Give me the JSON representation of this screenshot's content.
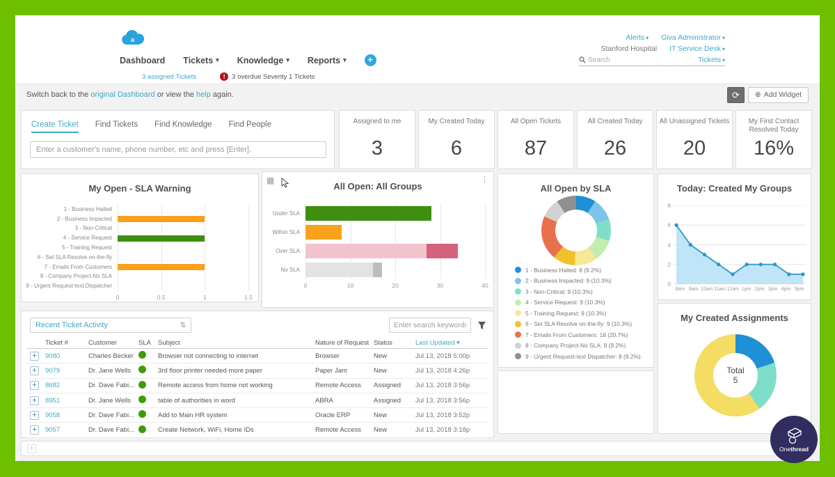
{
  "icons": {
    "caret": "▾",
    "menu_dots": "⋮",
    "grid": "▦",
    "refresh": "⟳",
    "add_widget": "⊕",
    "sort": "⇅",
    "alert": "!",
    "plus": "+"
  },
  "header": {
    "nav": [
      {
        "label": "Dashboard",
        "active": true,
        "caret": false
      },
      {
        "label": "Tickets",
        "active": false,
        "caret": true
      },
      {
        "label": "Knowledge",
        "active": false,
        "caret": true
      },
      {
        "label": "Reports",
        "active": false,
        "caret": true
      }
    ],
    "subnav": {
      "assigned": "3 assigned Tickets",
      "overdue": "3 overdue Severity 1 Tickets"
    },
    "account": {
      "alerts": "Alerts",
      "admin": "Giva Administrator",
      "org": "Stanford Hospital",
      "desk": "IT Service Desk",
      "search_placeholder": "Search",
      "scope": "Tickets"
    }
  },
  "toolbar": {
    "switch_prefix": "Switch back to the",
    "link_dashboard": "original Dashboard",
    "switch_mid": "or view the",
    "link_help": "help",
    "switch_suffix": "again.",
    "add_widget": "Add Widget"
  },
  "quick": {
    "tabs": [
      {
        "label": "Create Ticket",
        "active": true
      },
      {
        "label": "Find Tickets",
        "active": false
      },
      {
        "label": "Find Knowledge",
        "active": false
      },
      {
        "label": "Find People",
        "active": false
      }
    ],
    "placeholder": "Enter a customer's name, phone number, etc and press [Enter]."
  },
  "stats": [
    {
      "label": "Assigned to me",
      "value": "3"
    },
    {
      "label": "My Created Today",
      "value": "6"
    },
    {
      "label": "All Open Tickets",
      "value": "87"
    },
    {
      "label": "All Created Today",
      "value": "26"
    },
    {
      "label": "All Unassigned Tickets",
      "value": "20"
    },
    {
      "label": "My First Contact Resolved Today",
      "value": "16%"
    }
  ],
  "chart_data": [
    {
      "id": "sla_warning",
      "type": "bar",
      "orientation": "horizontal",
      "title": "My Open - SLA Warning",
      "categories": [
        "1 - Business Halted",
        "2 - Business Impacted",
        "3 - Non-Critical",
        "4 - Service Request",
        "5 - Training Request",
        "6 - Set SLA Resolve on-the-fly",
        "7 - Emails From Customers",
        "8 - Company Project-No SLA",
        "9 - Urgent Request-text Dispatcher"
      ],
      "values": [
        0,
        1,
        0,
        1,
        0,
        0,
        1,
        0,
        0
      ],
      "bar_colors": [
        "",
        "#f9a11b",
        "",
        "#3e8f10",
        "",
        "",
        "#f9a11b",
        "",
        ""
      ],
      "xlim": [
        0,
        1.5
      ],
      "xticks": [
        0,
        0.5,
        1,
        1.5
      ],
      "grid": true
    },
    {
      "id": "all_open_groups",
      "type": "bar",
      "orientation": "horizontal",
      "title": "All Open: All Groups",
      "categories": [
        "Under SLA",
        "Within SLA",
        "Over SLA",
        "No SLA"
      ],
      "segments": [
        [
          {
            "value": 28,
            "color": "#3e8f10"
          }
        ],
        [
          {
            "value": 8,
            "color": "#f9a11b"
          }
        ],
        [
          {
            "value": 27,
            "color": "#f2c3cd"
          },
          {
            "value": 7,
            "color": "#d4627d"
          }
        ],
        [
          {
            "value": 15,
            "color": "#e3e3e3"
          },
          {
            "value": 2,
            "color": "#bdbdbd"
          }
        ]
      ],
      "totals": {
        "Under SLA": 28,
        "Within SLA": 8,
        "Over SLA": 34,
        "No SLA": 17
      },
      "xlim": [
        0,
        40
      ],
      "xticks": [
        0,
        10,
        20,
        30,
        40
      ],
      "grid": true
    },
    {
      "id": "open_by_sla",
      "type": "donut",
      "title": "All Open by SLA",
      "slices": [
        {
          "label": "1 - Business Halted",
          "value": 8,
          "pct": "9.2%",
          "color": "#1f8fd6"
        },
        {
          "label": "2 - Business Impacted",
          "value": 9,
          "pct": "10.3%",
          "color": "#7cc4e8"
        },
        {
          "label": "3 - Non-Critical",
          "value": 9,
          "pct": "10.3%",
          "color": "#7fdec9"
        },
        {
          "label": "4 - Service Request",
          "value": 9,
          "pct": "10.3%",
          "color": "#c4ecaf"
        },
        {
          "label": "5 - Training Request",
          "value": 9,
          "pct": "10.3%",
          "color": "#f7e796"
        },
        {
          "label": "6 - Set SLA Resolve on-the-fly",
          "value": 9,
          "pct": "10.3%",
          "color": "#efc12f"
        },
        {
          "label": "7 - Emails From Customers",
          "value": 18,
          "pct": "20.7%",
          "color": "#e8714c"
        },
        {
          "label": "8 - Company Project-No SLA",
          "value": 8,
          "pct": "9.2%",
          "color": "#d2d2d2"
        },
        {
          "label": "9 - Urgent Request-text Dispatcher",
          "value": 8,
          "pct": "9.2%",
          "color": "#8f8f8f"
        }
      ],
      "legend_position": "bottom"
    },
    {
      "id": "today_created_my_groups",
      "type": "area",
      "title": "Today: Created My Groups",
      "x": [
        "8am",
        "9am",
        "10am",
        "11am",
        "12am",
        "1pm",
        "2pm",
        "3pm",
        "4pm",
        "5pm"
      ],
      "values": [
        6,
        4,
        3,
        2,
        1,
        2,
        2,
        2,
        1,
        1
      ],
      "ylim": [
        0,
        8
      ],
      "yticks": [
        0,
        2,
        4,
        6,
        8
      ],
      "line_color": "#3da0d2",
      "fill_color": "#b9e2f8",
      "grid": true
    },
    {
      "id": "my_created_assignments",
      "type": "donut",
      "title": "My Created Assignments",
      "center_label": "Total",
      "center_value": "5",
      "slices": [
        {
          "label": "",
          "value": 1,
          "pct": "20%",
          "color": "#1f8fd6"
        },
        {
          "label": "",
          "value": 1,
          "pct": "20%",
          "color": "#7fdec9"
        },
        {
          "label": "",
          "value": 3,
          "pct": "60%",
          "color": "#f5dc62"
        }
      ]
    }
  ],
  "table": {
    "selector": "Recent Ticket Activity",
    "search_placeholder": "Enter search keywords",
    "columns": [
      "Ticket #",
      "Customer",
      "SLA",
      "Subject",
      "Nature of Request",
      "Status",
      "Last Updated"
    ],
    "sorted_column": "Last Updated",
    "rows": [
      {
        "ticket": "9080",
        "customer": "Charles Becker",
        "sla": "green",
        "subject": "Browser not connecting to internet",
        "nature": "Browser",
        "status": "New",
        "updated": "Jul 13, 2018 5:00p"
      },
      {
        "ticket": "9079",
        "customer": "Dr. Jane Wells",
        "sla": "green",
        "subject": "3rd floor printer needed more paper",
        "nature": "Paper Jam",
        "status": "New",
        "updated": "Jul 13, 2018 4:26p"
      },
      {
        "ticket": "8682",
        "customer": "Dr. Dave Fabi...",
        "sla": "green",
        "subject": "Remote access from home not working",
        "nature": "Remote Access",
        "status": "Assigned",
        "updated": "Jul 13, 2018 3:56p"
      },
      {
        "ticket": "8951",
        "customer": "Dr. Jane Wells",
        "sla": "green",
        "subject": "table of authorities in word",
        "nature": "ABRA",
        "status": "Assigned",
        "updated": "Jul 13, 2018 3:56p"
      },
      {
        "ticket": "9058",
        "customer": "Dr. Dave Fabi...",
        "sla": "green",
        "subject": "Add to Main HR system",
        "nature": "Oracle ERP",
        "status": "New",
        "updated": "Jul 13, 2018 3:52p"
      },
      {
        "ticket": "9057",
        "customer": "Dr. Dave Fabi...",
        "sla": "green",
        "subject": "Create Network, WiFi, Home IDs",
        "nature": "Remote Access",
        "status": "New",
        "updated": "Jul 13, 2018 3:18p"
      }
    ]
  },
  "branding": {
    "name_light": "One",
    "name_bold": "thread"
  },
  "colors": {
    "frame": "#6dbf00",
    "accent_teal": "#3fa9c6",
    "accent_blue": "#2da7df",
    "bar_green": "#3e8f10",
    "bar_orange": "#f9a11b",
    "sla_dot": "#3f9b0b",
    "alert_red": "#b0131a",
    "watermark_bg": "#312d5e"
  }
}
